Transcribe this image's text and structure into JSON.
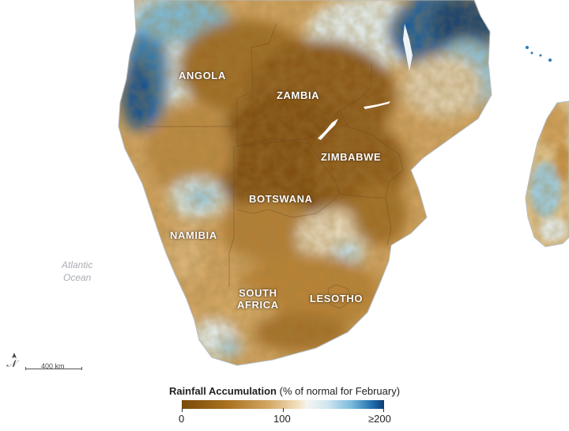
{
  "map": {
    "country_labels": {
      "angola": "ANGOLA",
      "zambia": "ZAMBIA",
      "zimbabwe": "ZIMBABWE",
      "botswana": "BOTSWANA",
      "namibia": "NAMIBIA",
      "south_africa_line1": "SOUTH",
      "south_africa_line2": "AFRICA",
      "lesotho": "LESOTHO"
    },
    "ocean_label_line1": "Atlantic",
    "ocean_label_line2": "Ocean",
    "scale_label": "400 km"
  },
  "legend": {
    "title_bold": "Rainfall Accumulation",
    "title_rest": " (% of normal for February)",
    "tick_min": "0",
    "tick_mid": "100",
    "tick_max": "≥200",
    "colors": {
      "dry": "#7a4a0a",
      "normal": "#f4f4f2",
      "wet": "#0c3d74"
    }
  }
}
